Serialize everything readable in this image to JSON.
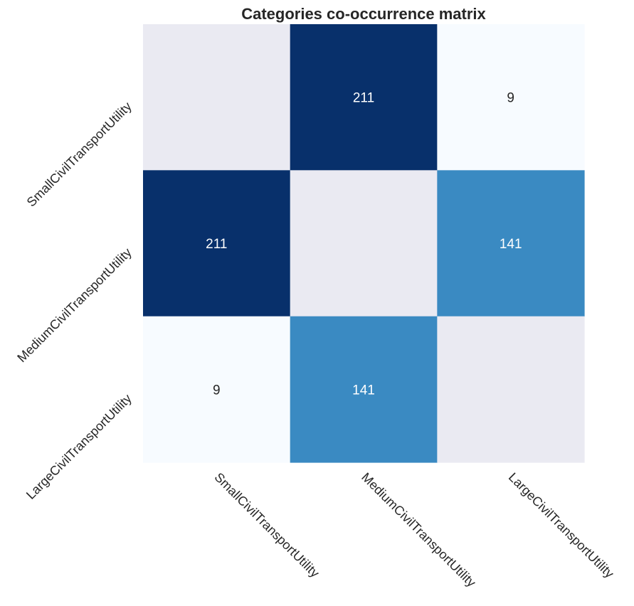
{
  "chart_data": {
    "type": "heatmap",
    "title": "Categories co-occurrence matrix",
    "xlabel": "",
    "ylabel": "",
    "row_labels": [
      "SmallCivilTransportUtility",
      "MediumCivilTransportUtility",
      "LargeCivilTransportUtility"
    ],
    "col_labels": [
      "SmallCivilTransportUtility",
      "MediumCivilTransportUtility",
      "LargeCivilTransportUtility"
    ],
    "values": [
      [
        null,
        211,
        9
      ],
      [
        211,
        null,
        141
      ],
      [
        9,
        141,
        null
      ]
    ],
    "value_labels": [
      [
        "",
        "211",
        "9"
      ],
      [
        "211",
        "",
        "141"
      ],
      [
        "9",
        "141",
        ""
      ]
    ],
    "colormap": "Blues",
    "vmin": 9,
    "vmax": 211,
    "colorbar": false,
    "grid": false,
    "colors": {
      "masked_cell": "#eaeaf2",
      "low": "#f7fbff",
      "mid": "#3a8ac1",
      "high": "#08306b",
      "text_light": "#ffffff",
      "text_dark": "#262626"
    }
  }
}
